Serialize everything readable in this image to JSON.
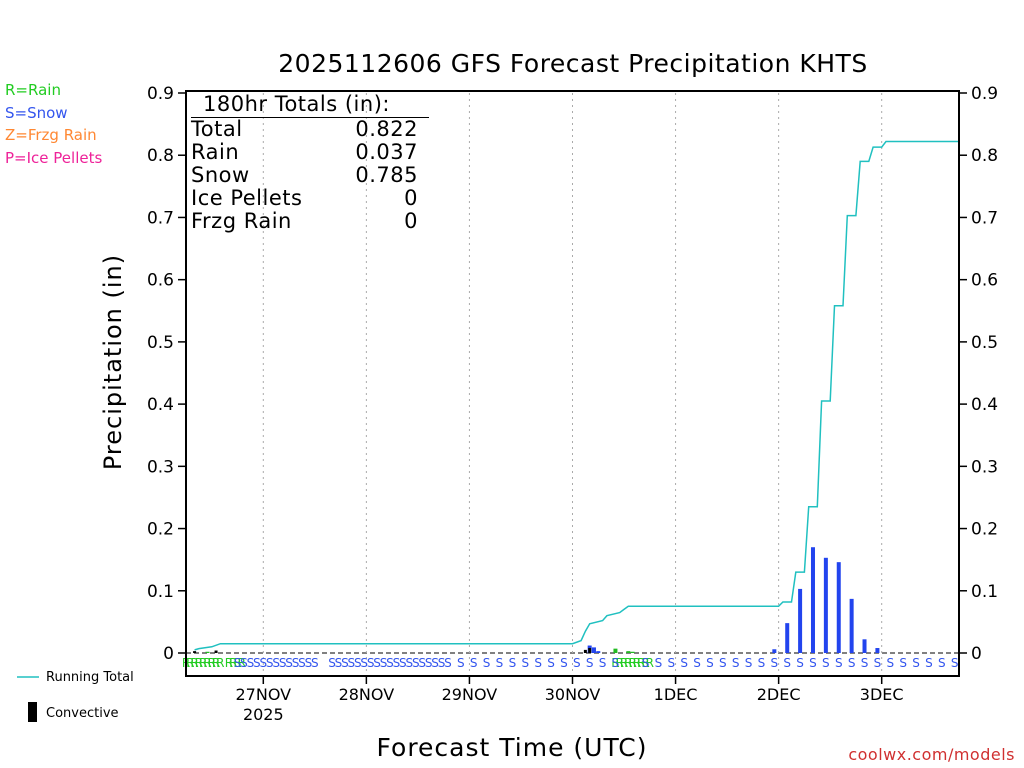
{
  "title": "2025112606 GFS Forecast Precipitation KHTS",
  "ylabel": "Precipitation (in)",
  "xlabel": "Forecast Time (UTC)",
  "credit": "coolwx.com/models",
  "legend": [
    {
      "label": "R=Rain",
      "color": "#22cc22"
    },
    {
      "label": "S=Snow",
      "color": "#3355ee"
    },
    {
      "label": "Z=Frzg Rain",
      "color": "#ff8833"
    },
    {
      "label": "P=Ice Pellets",
      "color": "#ee2299"
    }
  ],
  "bottom_legend": {
    "running_total": "Running Total",
    "convective": "Convective"
  },
  "totals": {
    "heading": "180hr Totals (in):",
    "rows": [
      {
        "label": "Total",
        "value": "0.822"
      },
      {
        "label": "Rain",
        "value": "0.037"
      },
      {
        "label": "Snow",
        "value": "0.785"
      },
      {
        "label": "Ice Pellets",
        "value": "0"
      },
      {
        "label": "Frzg Rain",
        "value": "0"
      }
    ]
  },
  "colors": {
    "running_total": "#20c0c0",
    "snow_bar": "#2244ee",
    "rain_bar": "#22bb22",
    "convective": "#000000",
    "grid": "#aaaaaa",
    "credit": "#d03030"
  },
  "chart_data": {
    "type": "bar",
    "forecast_hours": [
      6,
      186
    ],
    "ylim": [
      0,
      0.9
    ],
    "yticks": [
      "0",
      "0.1",
      "0.2",
      "0.3",
      "0.4",
      "0.5",
      "0.6",
      "0.7",
      "0.8",
      "0.9"
    ],
    "date_ticks": [
      {
        "hour": 24,
        "label": "27NOV",
        "sublabel": "2025"
      },
      {
        "hour": 48,
        "label": "28NOV"
      },
      {
        "hour": 72,
        "label": "29NOV"
      },
      {
        "hour": 96,
        "label": "30NOV"
      },
      {
        "hour": 120,
        "label": "1DEC"
      },
      {
        "hour": 144,
        "label": "2DEC"
      },
      {
        "hour": 168,
        "label": "3DEC"
      }
    ],
    "series": [
      {
        "name": "Running Total",
        "type": "line",
        "points": [
          [
            8,
            0.005
          ],
          [
            9,
            0.007
          ],
          [
            12,
            0.01
          ],
          [
            14,
            0.015
          ],
          [
            96,
            0.015
          ],
          [
            98,
            0.02
          ],
          [
            99,
            0.035
          ],
          [
            100,
            0.047
          ],
          [
            103,
            0.052
          ],
          [
            104,
            0.06
          ],
          [
            107,
            0.065
          ],
          [
            108,
            0.07
          ],
          [
            109,
            0.075
          ],
          [
            144,
            0.075
          ],
          [
            145,
            0.082
          ],
          [
            147,
            0.082
          ],
          [
            148,
            0.13
          ],
          [
            150,
            0.13
          ],
          [
            151,
            0.235
          ],
          [
            153,
            0.235
          ],
          [
            154,
            0.405
          ],
          [
            156,
            0.405
          ],
          [
            157,
            0.558
          ],
          [
            159,
            0.558
          ],
          [
            160,
            0.703
          ],
          [
            162,
            0.703
          ],
          [
            163,
            0.79
          ],
          [
            165,
            0.79
          ],
          [
            166,
            0.813
          ],
          [
            168,
            0.813
          ],
          [
            169,
            0.822
          ],
          [
            186,
            0.822
          ]
        ]
      },
      {
        "name": "Snow",
        "type": "bar",
        "points": [
          [
            100,
            0.012
          ],
          [
            101,
            0.009
          ],
          [
            102,
            0.003
          ],
          [
            143,
            0.006
          ],
          [
            146,
            0.048
          ],
          [
            149,
            0.103
          ],
          [
            152,
            0.17
          ],
          [
            155,
            0.153
          ],
          [
            158,
            0.146
          ],
          [
            161,
            0.087
          ],
          [
            164,
            0.022
          ],
          [
            167,
            0.008
          ]
        ]
      },
      {
        "name": "Rain",
        "type": "bar",
        "points": [
          [
            11,
            0.002
          ],
          [
            106,
            0.007
          ],
          [
            109,
            0.003
          ],
          [
            110,
            0.002
          ]
        ]
      },
      {
        "name": "Convective",
        "type": "bar",
        "points": [
          [
            8,
            0.003
          ],
          [
            13,
            0.004
          ],
          [
            99,
            0.005
          ],
          [
            100,
            0.008
          ]
        ]
      }
    ],
    "ptype_strip": {
      "rain": "RRRRRRRRRR RRRRR RRRRRRRRRRRRRRR",
      "snow": "SSSSS S SSS S S SS S S SSS SS SS S S S SSSSSSSSSSS SSSSSSS SSS S S S S S S S S S S S S S S S S S S S S",
      "rain_hours": [
        [
          6,
          14
        ],
        [
          16,
          19
        ],
        [
          106,
          114
        ]
      ],
      "snow_hours": [
        [
          18,
          36
        ],
        [
          40,
          68
        ],
        [
          70,
          106
        ],
        [
          113,
          186
        ]
      ]
    }
  }
}
